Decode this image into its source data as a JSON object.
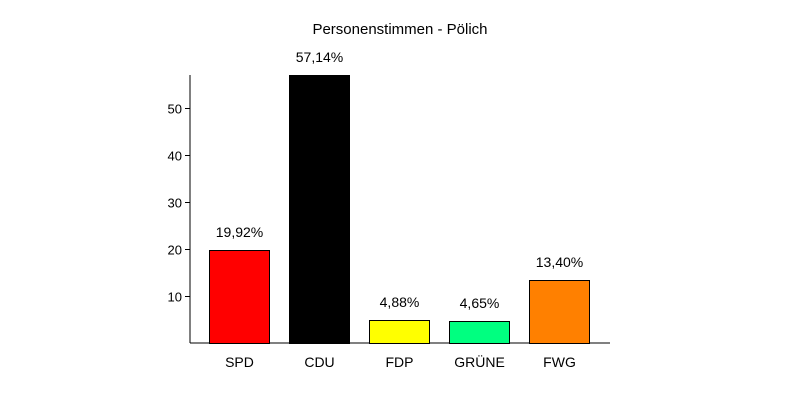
{
  "chart_data": {
    "type": "bar",
    "title": "Personenstimmen - Pölich",
    "categories": [
      "SPD",
      "CDU",
      "FDP",
      "GRÜNE",
      "FWG"
    ],
    "values": [
      19.92,
      57.14,
      4.88,
      4.65,
      13.4
    ],
    "data_labels": [
      "19,92%",
      "57,14%",
      "4,88%",
      "4,65%",
      "13,40%"
    ],
    "colors": [
      "#ff0000",
      "#000000",
      "#ffff00",
      "#00ff80",
      "#ff8000"
    ],
    "yticks": [
      10,
      20,
      30,
      40,
      50
    ],
    "ylim": [
      0,
      57.14
    ],
    "xlabel": "",
    "ylabel": "",
    "grid": false,
    "legend": "none"
  }
}
